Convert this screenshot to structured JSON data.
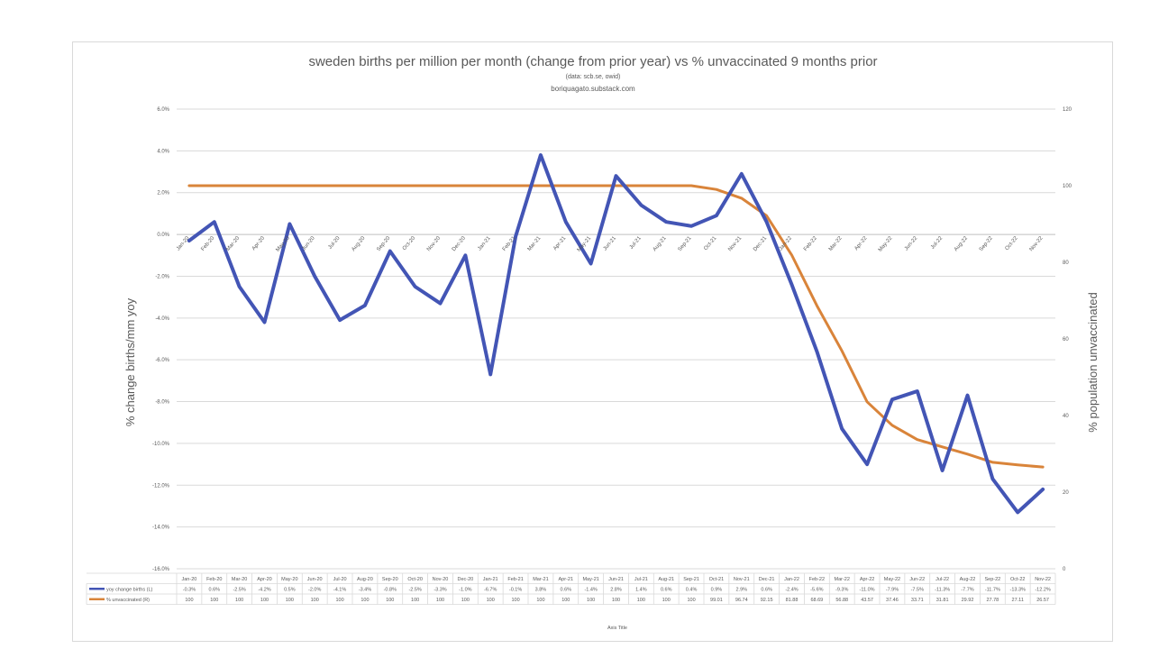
{
  "chart_data": {
    "type": "line",
    "title": "sweden births per million per month (change from prior year) vs % unvaccinated 9 months prior",
    "subtitle_lines": [
      "(data: scb.se, owid)",
      "boriquagato.substack.com"
    ],
    "xlabel": "Axis Title",
    "ylabel_left": "% change births/mm yoy",
    "ylabel_right": "% population unvaccinated",
    "ylim_left": [
      -16,
      6
    ],
    "ylim_right": [
      0,
      120
    ],
    "yticks_left": [
      "6.0%",
      "4.0%",
      "2.0%",
      "0.0%",
      "-2.0%",
      "-4.0%",
      "-6.0%",
      "-8.0%",
      "-10.0%",
      "-12.0%",
      "-14.0%",
      "-16.0%"
    ],
    "yticks_left_values": [
      6,
      4,
      2,
      0,
      -2,
      -4,
      -6,
      -8,
      -10,
      -12,
      -14,
      -16
    ],
    "yticks_right": [
      "120",
      "100",
      "80",
      "60",
      "40",
      "20",
      "0"
    ],
    "yticks_right_values": [
      120,
      100,
      80,
      60,
      40,
      20,
      0
    ],
    "categories": [
      "Jan-20",
      "Feb-20",
      "Mar-20",
      "Apr-20",
      "May-20",
      "Jun-20",
      "Jul-20",
      "Aug-20",
      "Sep-20",
      "Oct-20",
      "Nov-20",
      "Dec-20",
      "Jan-21",
      "Feb-21",
      "Mar-21",
      "Apr-21",
      "May-21",
      "Jun-21",
      "Jul-21",
      "Aug-21",
      "Sep-21",
      "Oct-21",
      "Nov-21",
      "Dec-21",
      "Jan-22",
      "Feb-22",
      "Mar-22",
      "Apr-22",
      "May-22",
      "Jun-22",
      "Jul-22",
      "Aug-22",
      "Sep-22",
      "Oct-22",
      "Nov-22"
    ],
    "grid": true,
    "legend": "data table below chart",
    "series": [
      {
        "name": "yoy change births (L)",
        "axis": "left",
        "color": "#4355b5",
        "values": [
          -0.3,
          0.6,
          -2.5,
          -4.2,
          0.5,
          -2.0,
          -4.1,
          -3.4,
          -0.8,
          -2.5,
          -3.3,
          -1.0,
          -6.7,
          -0.1,
          3.8,
          0.6,
          -1.4,
          2.8,
          1.4,
          0.6,
          0.4,
          0.9,
          2.9,
          0.6,
          -2.4,
          -5.6,
          -9.3,
          -11.0,
          -7.9,
          -7.5,
          -11.3,
          -7.7,
          -11.7,
          -13.3,
          -12.2
        ],
        "labels": [
          "-0.3%",
          "0.6%",
          "-2.5%",
          "-4.2%",
          "0.5%",
          "-2.0%",
          "-4.1%",
          "-3.4%",
          "-0.8%",
          "-2.5%",
          "-3.3%",
          "-1.0%",
          "-6.7%",
          "-0.1%",
          "3.8%",
          "0.6%",
          "-1.4%",
          "2.8%",
          "1.4%",
          "0.6%",
          "0.4%",
          "0.9%",
          "2.9%",
          "0.6%",
          "-2.4%",
          "-5.6%",
          "-9.3%",
          "-11.0%",
          "-7.9%",
          "-7.5%",
          "-11.3%",
          "-7.7%",
          "-11.7%",
          "-13.3%",
          "-12.2%"
        ]
      },
      {
        "name": "% unvaccinated (R)",
        "axis": "right",
        "color": "#d9843a",
        "values": [
          100,
          100,
          100,
          100,
          100,
          100,
          100,
          100,
          100,
          100,
          100,
          100,
          100,
          100,
          100,
          100,
          100,
          100,
          100,
          100,
          100,
          99.01,
          96.74,
          92.15,
          81.88,
          68.69,
          56.88,
          43.57,
          37.46,
          33.71,
          31.81,
          29.92,
          27.78,
          27.11,
          26.57
        ],
        "labels": [
          "100",
          "100",
          "100",
          "100",
          "100",
          "100",
          "100",
          "100",
          "100",
          "100",
          "100",
          "100",
          "100",
          "100",
          "100",
          "100",
          "100",
          "100",
          "100",
          "100",
          "100",
          "99.01",
          "96.74",
          "92.15",
          "81.88",
          "68.69",
          "56.88",
          "43.57",
          "37.46",
          "33.71",
          "31.81",
          "29.92",
          "27.78",
          "27.11",
          "26.57"
        ]
      }
    ]
  }
}
